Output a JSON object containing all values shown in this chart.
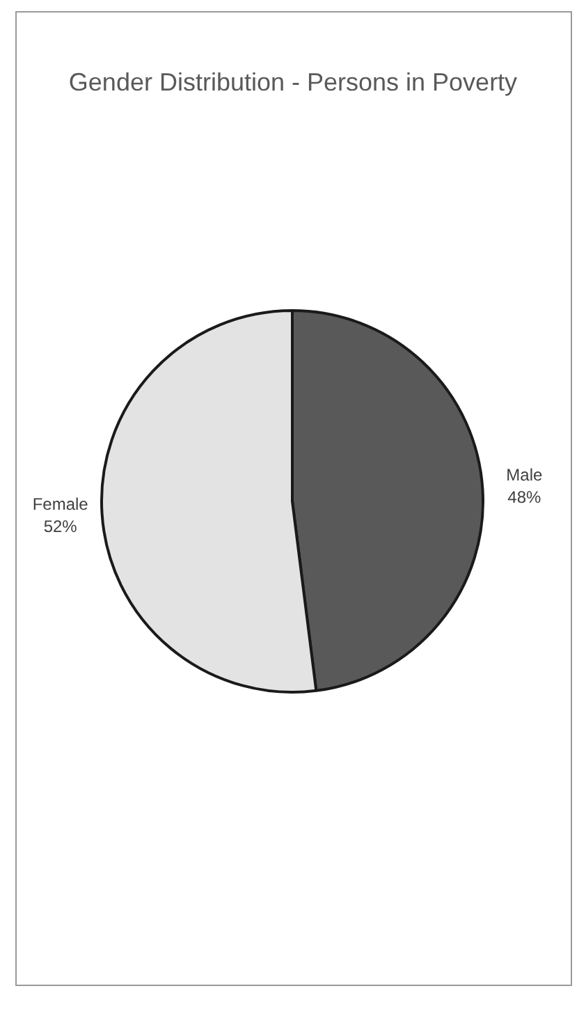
{
  "chart_data": {
    "type": "pie",
    "title": "Gender Distribution - Persons in Poverty",
    "categories": [
      "Male",
      "Female"
    ],
    "values": [
      48,
      52
    ],
    "value_labels": [
      "48%",
      "52%"
    ],
    "colors": [
      "#595959",
      "#e3e3e3"
    ]
  }
}
